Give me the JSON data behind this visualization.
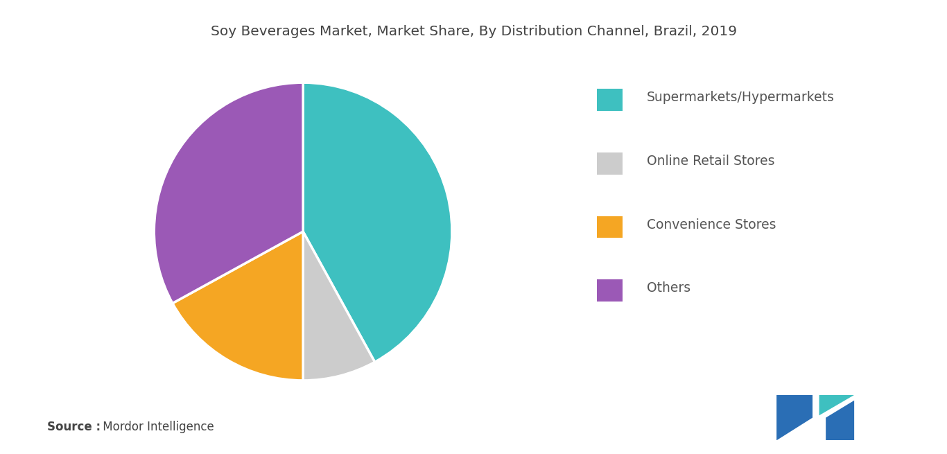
{
  "title": "Soy Beverages Market, Market Share, By Distribution Channel, Brazil, 2019",
  "slices": [
    {
      "label": "Supermarkets/Hypermarkets",
      "value": 42,
      "color": "#3ec0c0"
    },
    {
      "label": "Online Retail Stores",
      "value": 8,
      "color": "#cccccc"
    },
    {
      "label": "Convenience Stores",
      "value": 17,
      "color": "#f5a623"
    },
    {
      "label": "Others",
      "value": 33,
      "color": "#9b59b6"
    }
  ],
  "source_bold": "Source :",
  "source_normal": " Mordor Intelligence",
  "background_color": "#ffffff",
  "title_fontsize": 14.5,
  "legend_fontsize": 13.5,
  "source_fontsize": 12,
  "startangle": 90,
  "logo_dark": "#2a6eb5",
  "logo_teal": "#3ec0c0",
  "edge_color": "#ffffff",
  "edge_width": 2.5,
  "text_color": "#555555",
  "title_color": "#444444"
}
